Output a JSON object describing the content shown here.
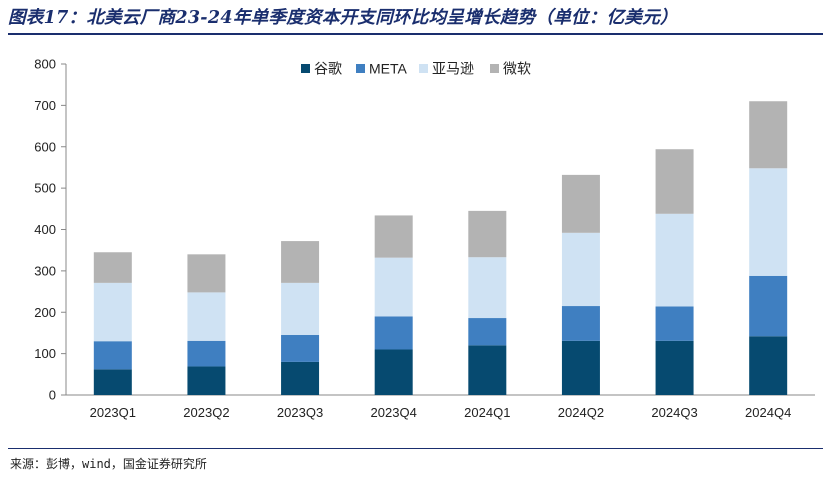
{
  "header": {
    "title": "图表17：北美云厂商23-24年单季度资本开支同环比均呈增长趋势（单位：亿美元）"
  },
  "footer": {
    "source": "来源：彭博，wind，国金证券研究所"
  },
  "colors": {
    "title": "#1a2e6e",
    "series": [
      "#064a70",
      "#3f7fc1",
      "#cfe2f3",
      "#b3b3b3"
    ]
  },
  "chart_data": {
    "type": "bar",
    "stacked": true,
    "categories": [
      "2023Q1",
      "2023Q2",
      "2023Q3",
      "2023Q4",
      "2024Q1",
      "2024Q2",
      "2024Q3",
      "2024Q4"
    ],
    "series": [
      {
        "name": "谷歌",
        "values": [
          62,
          69,
          80,
          110,
          120,
          131,
          131,
          142
        ]
      },
      {
        "name": "META",
        "values": [
          68,
          62,
          65,
          80,
          66,
          84,
          83,
          146
        ]
      },
      {
        "name": "亚马逊",
        "values": [
          141,
          117,
          126,
          142,
          147,
          177,
          224,
          260
        ]
      },
      {
        "name": "微软",
        "values": [
          74,
          92,
          101,
          102,
          112,
          140,
          156,
          162
        ]
      }
    ],
    "ylim": [
      0,
      800
    ],
    "yticks": [
      0,
      100,
      200,
      300,
      400,
      500,
      600,
      700,
      800
    ],
    "legend_position": "top-center",
    "grid": false
  }
}
